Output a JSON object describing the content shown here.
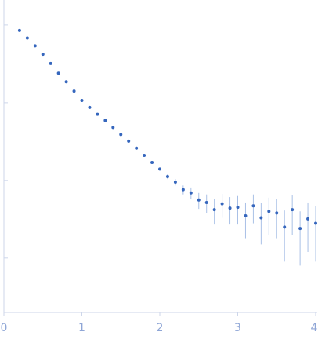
{
  "chart_data": {
    "type": "scatter",
    "log_y": true,
    "x": [
      0.2,
      0.3,
      0.4,
      0.5,
      0.6,
      0.7,
      0.8,
      0.9,
      1.0,
      1.1,
      1.2,
      1.3,
      1.4,
      1.5,
      1.6,
      1.7,
      1.8,
      1.9,
      2.0,
      2.1,
      2.2,
      2.3,
      2.4,
      2.5,
      2.6,
      2.7,
      2.8,
      2.9,
      3.0,
      3.1,
      3.2,
      3.3,
      3.4,
      3.5,
      3.6,
      3.7,
      3.8,
      3.9,
      4.0
    ],
    "values": [
      0.85,
      0.68,
      0.54,
      0.42,
      0.32,
      0.24,
      0.186,
      0.141,
      0.107,
      0.087,
      0.071,
      0.059,
      0.048,
      0.039,
      0.032,
      0.026,
      0.021,
      0.017,
      0.014,
      0.0112,
      0.0095,
      0.0076,
      0.0069,
      0.0056,
      0.0052,
      0.0042,
      0.005,
      0.0044,
      0.0045,
      0.0035,
      0.0047,
      0.0033,
      0.004,
      0.0038,
      0.0025,
      0.0042,
      0.0024,
      0.0032,
      0.0028
    ],
    "errors": [
      0.01,
      0.008,
      0.006,
      0.005,
      0.004,
      0.003,
      0.002,
      0.002,
      0.0015,
      0.0012,
      0.001,
      0.001,
      0.0008,
      0.0007,
      0.0006,
      0.0006,
      0.0005,
      0.0005,
      0.0006,
      0.0008,
      0.0009,
      0.001,
      0.0012,
      0.0013,
      0.0014,
      0.0015,
      0.0017,
      0.0017,
      0.0018,
      0.0017,
      0.0019,
      0.0018,
      0.002,
      0.002,
      0.0016,
      0.0022,
      0.0016,
      0.002,
      0.0019
    ],
    "color": "#3566bd",
    "error_color": "#a9c0e6",
    "xlim": [
      0,
      4.02
    ],
    "xticks": [
      0,
      1,
      2,
      3,
      4
    ],
    "ylim": [
      0.0002,
      2.1
    ],
    "yticks": [
      1,
      0.1,
      0.01,
      0.001
    ]
  }
}
